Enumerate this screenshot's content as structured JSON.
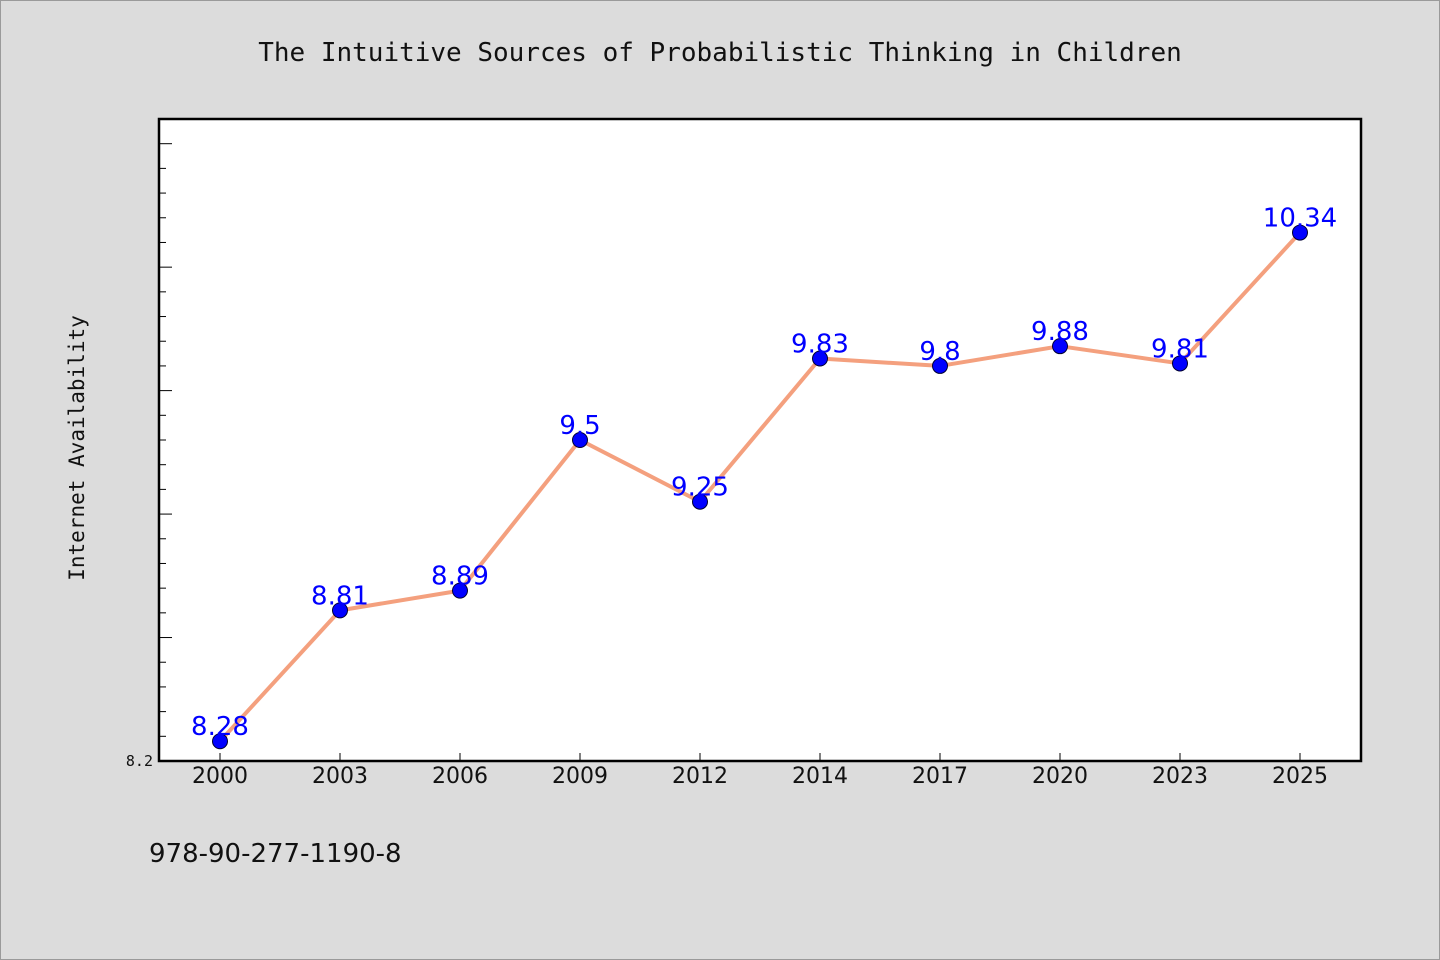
{
  "chart_data": {
    "type": "line",
    "title": "The Intuitive Sources of Probabilistic Thinking in Children",
    "xlabel": "",
    "ylabel": "Internet Availability",
    "categories": [
      "2000",
      "2003",
      "2006",
      "2009",
      "2012",
      "2014",
      "2017",
      "2020",
      "2023",
      "2025"
    ],
    "series": [
      {
        "values": [
          8.28,
          8.81,
          8.89,
          9.5,
          9.25,
          9.83,
          9.8,
          9.88,
          9.81,
          10.34
        ]
      }
    ],
    "data_labels": [
      "8.28",
      "8.81",
      "8.89",
      "9.5",
      "9.25",
      "9.83",
      "9.8",
      "9.88",
      "9.81",
      "10.34"
    ],
    "ylim": [
      8.2,
      10.8
    ],
    "y_tick_labels": [
      "8.2"
    ],
    "grid": false,
    "legend": "none",
    "colors": {
      "line": "#f4a07e",
      "marker": "#0000ff",
      "label": "#0000ff",
      "background": "#dcdcdc",
      "plot_background": "#ffffff"
    }
  },
  "footer": {
    "isbn": "978-90-277-1190-8"
  }
}
